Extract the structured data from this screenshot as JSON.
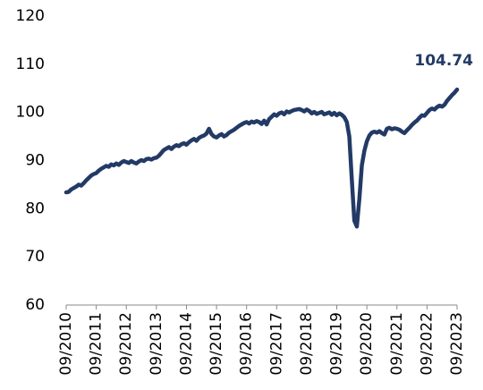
{
  "chart_data": {
    "type": "line",
    "categories": [
      "09/2010",
      null,
      null,
      null,
      null,
      null,
      null,
      null,
      null,
      null,
      null,
      null,
      "09/2011",
      null,
      null,
      null,
      null,
      null,
      null,
      null,
      null,
      null,
      null,
      null,
      "09/2012",
      null,
      null,
      null,
      null,
      null,
      null,
      null,
      null,
      null,
      null,
      null,
      "09/2013",
      null,
      null,
      null,
      null,
      null,
      null,
      null,
      null,
      null,
      null,
      null,
      "09/2014",
      null,
      null,
      null,
      null,
      null,
      null,
      null,
      null,
      null,
      null,
      null,
      "09/2015",
      null,
      null,
      null,
      null,
      null,
      null,
      null,
      null,
      null,
      null,
      null,
      "09/2016",
      null,
      null,
      null,
      null,
      null,
      null,
      null,
      null,
      null,
      null,
      null,
      "09/2017",
      null,
      null,
      null,
      null,
      null,
      null,
      null,
      null,
      null,
      null,
      null,
      "09/2018",
      null,
      null,
      null,
      null,
      null,
      null,
      null,
      null,
      null,
      null,
      null,
      "09/2019",
      null,
      null,
      null,
      null,
      null,
      null,
      null,
      null,
      null,
      null,
      null,
      "09/2020",
      null,
      null,
      null,
      null,
      null,
      null,
      null,
      null,
      null,
      null,
      null,
      "09/2021",
      null,
      null,
      null,
      null,
      null,
      null,
      null,
      null,
      null,
      null,
      null,
      "09/2022",
      null,
      null,
      null,
      null,
      null,
      null,
      null,
      null,
      null,
      null,
      null,
      "09/2023"
    ],
    "values": [
      83.4,
      83.5,
      84.0,
      84.3,
      84.6,
      85.0,
      84.8,
      85.3,
      85.9,
      86.4,
      86.9,
      87.2,
      87.4,
      87.9,
      88.3,
      88.6,
      88.9,
      88.7,
      89.2,
      89.0,
      89.4,
      89.1,
      89.6,
      89.9,
      89.7,
      89.5,
      89.9,
      89.6,
      89.4,
      89.8,
      90.1,
      89.9,
      90.3,
      90.4,
      90.2,
      90.5,
      90.6,
      91.0,
      91.6,
      92.2,
      92.5,
      92.8,
      92.4,
      92.9,
      93.2,
      93.0,
      93.4,
      93.6,
      93.3,
      93.8,
      94.2,
      94.5,
      94.1,
      94.7,
      95.0,
      95.2,
      95.6,
      96.6,
      95.5,
      95.0,
      94.8,
      95.2,
      95.5,
      95.0,
      95.3,
      95.8,
      96.1,
      96.4,
      96.8,
      97.2,
      97.5,
      97.8,
      98.0,
      97.7,
      98.1,
      97.9,
      98.2,
      98.0,
      97.6,
      98.3,
      97.5,
      98.6,
      99.1,
      99.6,
      99.3,
      99.8,
      100.0,
      99.6,
      100.2,
      100.0,
      100.3,
      100.5,
      100.6,
      100.7,
      100.5,
      100.2,
      100.6,
      100.3,
      99.8,
      100.1,
      99.7,
      99.9,
      100.1,
      99.6,
      99.8,
      100.0,
      99.5,
      99.9,
      99.4,
      99.8,
      99.5,
      99.0,
      98.0,
      95.0,
      86.0,
      77.5,
      76.3,
      82.0,
      89.0,
      92.0,
      94.0,
      95.2,
      95.8,
      96.0,
      95.8,
      96.1,
      95.7,
      95.4,
      96.6,
      96.8,
      96.5,
      96.7,
      96.6,
      96.4,
      96.0,
      95.7,
      96.3,
      96.8,
      97.4,
      97.9,
      98.3,
      98.9,
      99.4,
      99.3,
      99.9,
      100.5,
      100.8,
      100.6,
      101.1,
      101.4,
      101.2,
      101.6,
      102.4,
      103.0,
      103.6,
      104.1,
      104.74
    ],
    "color": "#233a66",
    "ylim": [
      60,
      120
    ],
    "yticks": [
      60,
      70,
      80,
      90,
      100,
      110,
      120
    ],
    "grid": false
  }
}
